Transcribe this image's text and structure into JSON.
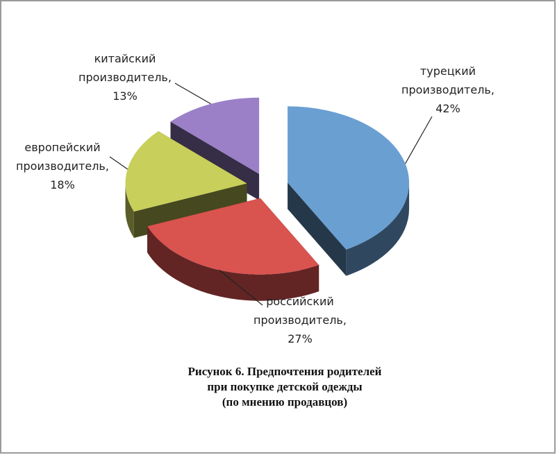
{
  "chart_data": {
    "type": "pie3d",
    "title": [
      "Рисунок 6. Предпочтения родителей",
      "при покупке детской одежды",
      "(по мнению продавцов)"
    ],
    "categories": [
      "турецкий производитель,",
      "российский производитель,",
      "европейский производитель,",
      "китайский производитель,"
    ],
    "values": [
      42,
      27,
      18,
      13
    ],
    "value_labels": [
      "42%",
      "27%",
      "18%",
      "13%"
    ],
    "colors": [
      "#6a9fd2",
      "#d9534f",
      "#c8cf5a",
      "#9b80c8"
    ]
  }
}
